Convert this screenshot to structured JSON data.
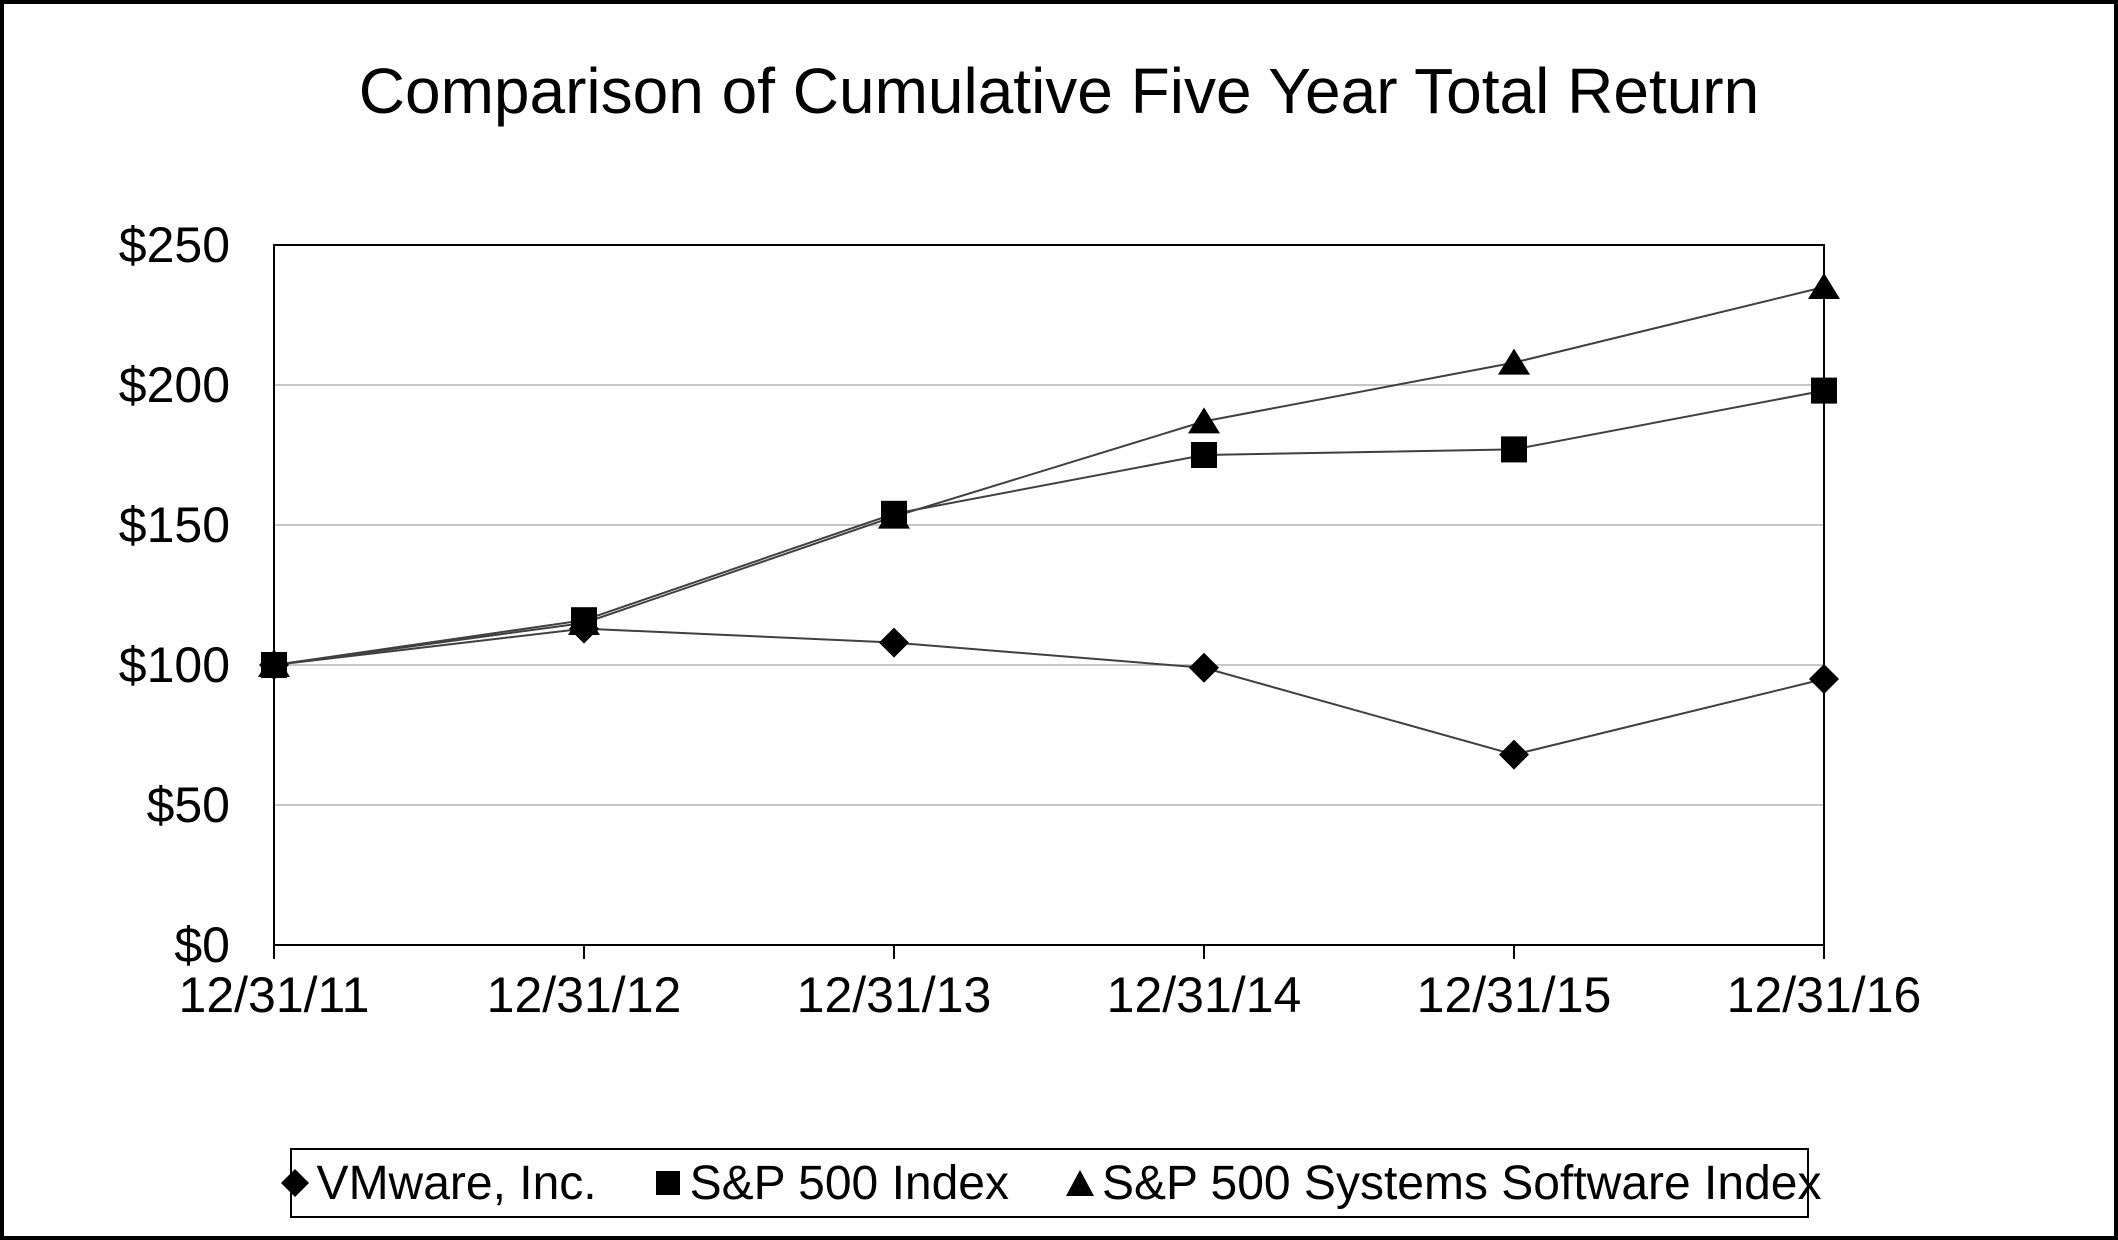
{
  "title": "Comparison of Cumulative Five Year Total Return",
  "chart_data": {
    "type": "line",
    "title": "Comparison of Cumulative Five Year Total Return",
    "categories": [
      "12/31/11",
      "12/31/12",
      "12/31/13",
      "12/31/14",
      "12/31/15",
      "12/31/16"
    ],
    "series": [
      {
        "name": "VMware, Inc.",
        "marker": "diamond",
        "values": [
          100,
          113,
          108,
          99,
          68,
          95
        ]
      },
      {
        "name": "S&P 500 Index",
        "marker": "square",
        "values": [
          100,
          116,
          154,
          175,
          177,
          198
        ]
      },
      {
        "name": "S&P 500 Systems Software Index",
        "marker": "triangle",
        "values": [
          100,
          115,
          153,
          187,
          208,
          235
        ]
      }
    ],
    "ylim": [
      0,
      250
    ],
    "yticks": [
      {
        "value": 250,
        "label": "$250"
      },
      {
        "value": 200,
        "label": "$200"
      },
      {
        "value": 150,
        "label": "$150"
      },
      {
        "value": 100,
        "label": "$100"
      },
      {
        "value": 50,
        "label": "$50"
      },
      {
        "value": 0,
        "label": "$0"
      }
    ],
    "grid": true,
    "legend_position": "bottom",
    "colors": {
      "series_line": "#404040",
      "marker_fill": "#000000",
      "gridline": "#b3b3b3",
      "plot_border": "#000000",
      "text": "#000000",
      "background": "#ffffff"
    }
  }
}
